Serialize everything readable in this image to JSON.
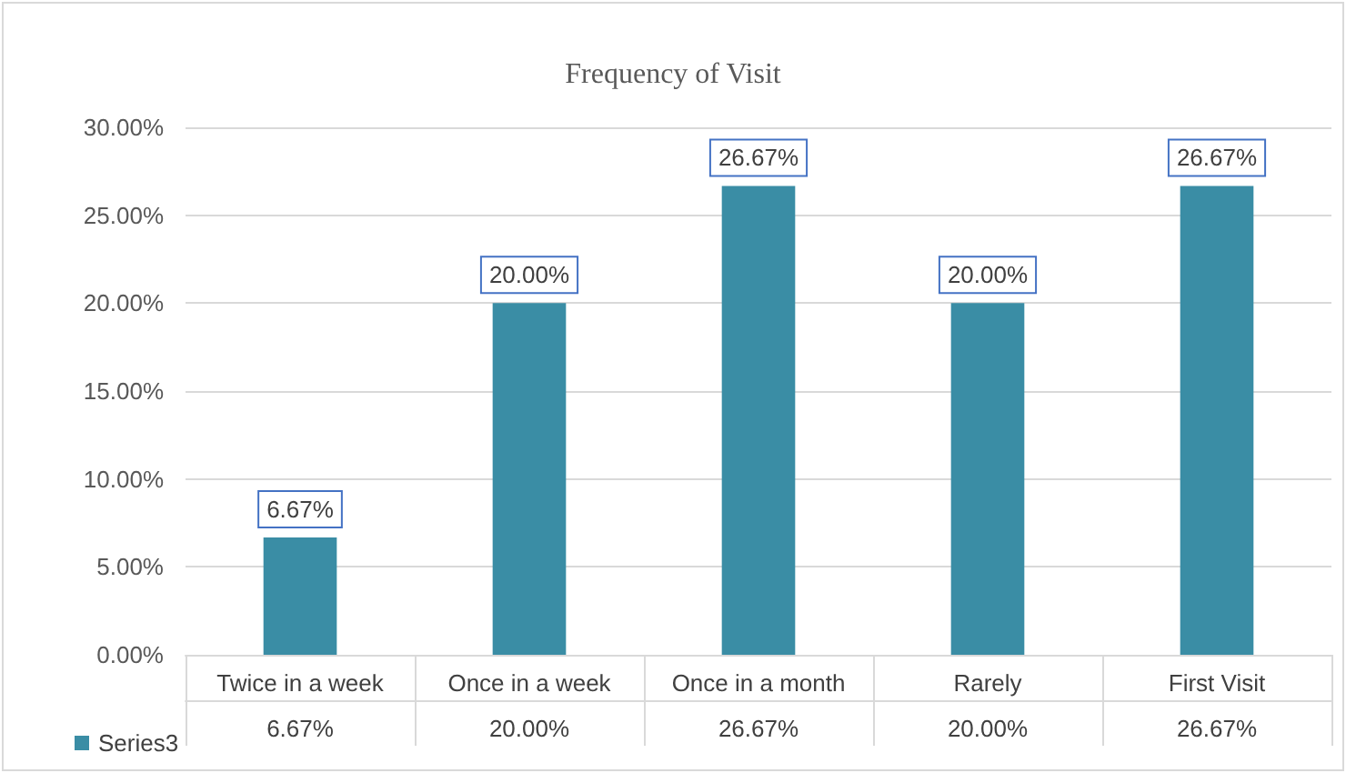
{
  "chart_data": {
    "type": "bar",
    "title": "Frequency of Visit",
    "categories": [
      "Twice in a week",
      "Once in a week",
      "Once in a month",
      "Rarely",
      "First Visit"
    ],
    "series": [
      {
        "name": "Series3",
        "color": "#3a8da5",
        "values": [
          6.67,
          20,
          26.67,
          20,
          26.67
        ],
        "value_labels": [
          "6.67%",
          "20.00%",
          "26.67%",
          "20.00%",
          "26.67%"
        ]
      }
    ],
    "ylim": [
      0,
      30
    ],
    "yticks": [
      {
        "value": 0,
        "label": "0.00%"
      },
      {
        "value": 5,
        "label": "5.00%"
      },
      {
        "value": 10,
        "label": "10.00%"
      },
      {
        "value": 15,
        "label": "15.00%"
      },
      {
        "value": 20,
        "label": "20.00%"
      },
      {
        "value": 25,
        "label": "25.00%"
      },
      {
        "value": 30,
        "label": "30.00%"
      }
    ],
    "grid": "y",
    "legend": "bottom left"
  }
}
